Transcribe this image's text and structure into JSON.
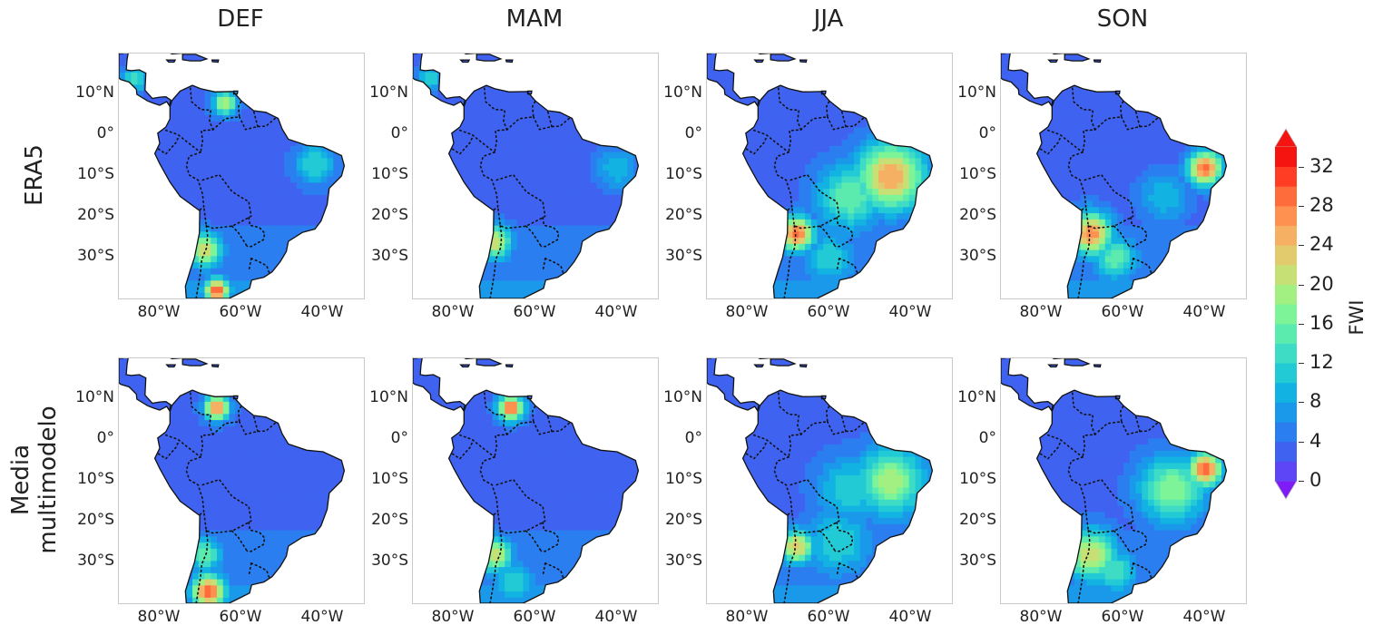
{
  "column_titles": [
    "DEF",
    "MAM",
    "JJA",
    "SON"
  ],
  "row_titles": [
    {
      "lines": [
        "ERA5"
      ]
    },
    {
      "lines": [
        "Media",
        "multimodelo"
      ]
    }
  ],
  "lat_ticks": [
    "10°N",
    "0°",
    "10°S",
    "20°S",
    "30°S"
  ],
  "lon_ticks": [
    "80°W",
    "60°W",
    "40°W"
  ],
  "colorbar": {
    "label": "FWI",
    "ticks": [
      "0",
      "4",
      "8",
      "12",
      "16",
      "20",
      "24",
      "28",
      "32"
    ],
    "levels": [
      0,
      2,
      4,
      6,
      8,
      10,
      12,
      14,
      16,
      18,
      20,
      22,
      24,
      26,
      28,
      30,
      32,
      34
    ],
    "colors": [
      "#7f1cf5",
      "#5c46f6",
      "#3f63f0",
      "#2a7ef0",
      "#1a98ea",
      "#12b2e2",
      "#22cad6",
      "#3edcc4",
      "#5cebaf",
      "#7cf497",
      "#a2ef82",
      "#c6e076",
      "#e2cb6d",
      "#f6b063",
      "#ff9150",
      "#ff6c3c",
      "#ff3c24",
      "#f51410"
    ],
    "extend": "both"
  },
  "map_data": {
    "type": "filled-contour-map-grid",
    "variable": "FWI",
    "rows": [
      "ERA5",
      "Media multimodelo"
    ],
    "columns": [
      "DEF",
      "MAM",
      "JJA",
      "SON"
    ],
    "lon_range": [
      -90,
      -30
    ],
    "lat_range": [
      -40,
      20
    ],
    "base_fwi": 5,
    "hotspots": [
      [
        [
          {
            "lon": -64,
            "lat": 8,
            "fwi": 22,
            "r": 3
          },
          {
            "lon": -69,
            "lat": -28,
            "fwi": 24,
            "r": 4
          },
          {
            "lon": -66,
            "lat": -38,
            "fwi": 32,
            "r": 3
          },
          {
            "lon": -42,
            "lat": -7,
            "fwi": 14,
            "r": 5
          },
          {
            "lon": -86,
            "lat": 14,
            "fwi": 16,
            "r": 3
          }
        ],
        [
          {
            "lon": -70,
            "lat": -26,
            "fwi": 24,
            "r": 4
          },
          {
            "lon": -40,
            "lat": -8,
            "fwi": 12,
            "r": 5
          },
          {
            "lon": -86,
            "lat": 14,
            "fwi": 14,
            "r": 3
          }
        ],
        [
          {
            "lon": -45,
            "lat": -10,
            "fwi": 28,
            "r": 8
          },
          {
            "lon": -68,
            "lat": -24,
            "fwi": 32,
            "r": 4
          },
          {
            "lon": -55,
            "lat": -15,
            "fwi": 18,
            "r": 8
          },
          {
            "lon": -60,
            "lat": -30,
            "fwi": 14,
            "r": 6
          }
        ],
        [
          {
            "lon": -40,
            "lat": -8,
            "fwi": 32,
            "r": 4
          },
          {
            "lon": -68,
            "lat": -24,
            "fwi": 30,
            "r": 5
          },
          {
            "lon": -62,
            "lat": -30,
            "fwi": 18,
            "r": 5
          },
          {
            "lon": -50,
            "lat": -15,
            "fwi": 12,
            "r": 6
          }
        ]
      ],
      [
        [
          {
            "lon": -66,
            "lat": 8,
            "fwi": 30,
            "r": 3
          },
          {
            "lon": -68,
            "lat": -37,
            "fwi": 32,
            "r": 4
          },
          {
            "lon": -69,
            "lat": -28,
            "fwi": 18,
            "r": 4
          }
        ],
        [
          {
            "lon": -66,
            "lat": 8,
            "fwi": 32,
            "r": 3
          },
          {
            "lon": -70,
            "lat": -28,
            "fwi": 24,
            "r": 4
          },
          {
            "lon": -65,
            "lat": -35,
            "fwi": 14,
            "r": 5
          }
        ],
        [
          {
            "lon": -45,
            "lat": -10,
            "fwi": 22,
            "r": 8
          },
          {
            "lon": -68,
            "lat": -26,
            "fwi": 26,
            "r": 4
          },
          {
            "lon": -58,
            "lat": -25,
            "fwi": 14,
            "r": 8
          },
          {
            "lon": -55,
            "lat": -12,
            "fwi": 14,
            "r": 8
          }
        ],
        [
          {
            "lon": -40,
            "lat": -7,
            "fwi": 32,
            "r": 4
          },
          {
            "lon": -48,
            "lat": -12,
            "fwi": 20,
            "r": 8
          },
          {
            "lon": -68,
            "lat": -28,
            "fwi": 24,
            "r": 6
          },
          {
            "lon": -62,
            "lat": -32,
            "fwi": 16,
            "r": 5
          }
        ]
      ]
    ]
  }
}
